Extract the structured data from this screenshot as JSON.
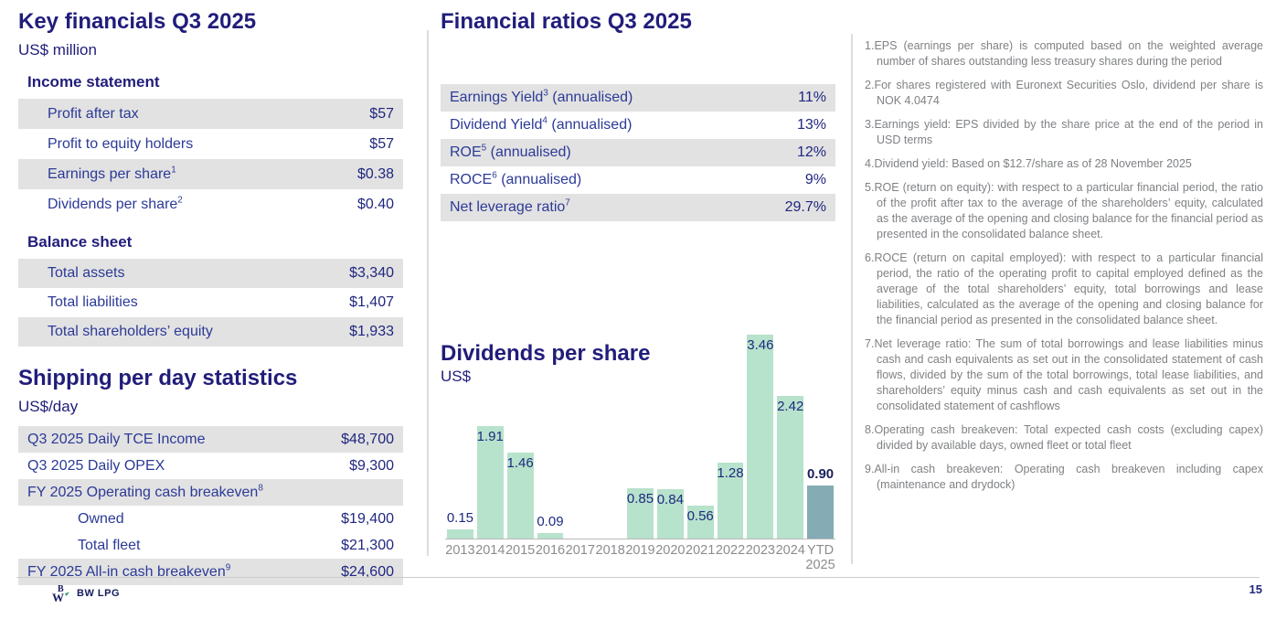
{
  "left": {
    "title": "Key financials Q3 2025",
    "subtitle": "US$ million",
    "income": {
      "heading": "Income statement",
      "rows": [
        {
          "label": "Profit after tax",
          "sup": "",
          "value": "$57",
          "shaded": true,
          "indent": 1
        },
        {
          "label": "Profit to equity holders",
          "sup": "",
          "value": "$57",
          "shaded": false,
          "indent": 1
        },
        {
          "label": "Earnings per share",
          "sup": "1",
          "value": "$0.38",
          "shaded": true,
          "indent": 1
        },
        {
          "label": "Dividends per share",
          "sup": "2",
          "value": "$0.40",
          "shaded": false,
          "indent": 1
        }
      ]
    },
    "balance": {
      "heading": "Balance sheet",
      "rows": [
        {
          "label": "Total assets",
          "sup": "",
          "value": "$3,340",
          "shaded": true,
          "indent": 1
        },
        {
          "label": "Total liabilities",
          "sup": "",
          "value": "$1,407",
          "shaded": false,
          "indent": 1
        },
        {
          "label": "Total shareholders’ equity",
          "sup": "",
          "value": "$1,933",
          "shaded": true,
          "indent": 1
        }
      ]
    }
  },
  "shipping": {
    "title": "Shipping per day statistics",
    "subtitle": "US$/day",
    "rows": [
      {
        "label": "Q3 2025 Daily TCE Income",
        "sup": "",
        "value": "$48,700",
        "shaded": true,
        "indent": 0
      },
      {
        "label": "Q3 2025 Daily OPEX",
        "sup": "",
        "value": "$9,300",
        "shaded": false,
        "indent": 0
      },
      {
        "label": "FY 2025 Operating cash breakeven",
        "sup": "8",
        "value": "",
        "shaded": true,
        "indent": 0
      },
      {
        "label": "Owned",
        "sup": "",
        "value": "$19,400",
        "shaded": false,
        "indent": 2
      },
      {
        "label": "Total fleet",
        "sup": "",
        "value": "$21,300",
        "shaded": false,
        "indent": 2
      },
      {
        "label": "FY 2025 All-in cash breakeven",
        "sup": "9",
        "value": "$24,600",
        "shaded": true,
        "indent": 0
      }
    ]
  },
  "ratios": {
    "title": "Financial ratios Q3 2025",
    "rows": [
      {
        "label": "Earnings Yield",
        "sup": "3",
        "suffix": " (annualised)",
        "value": "11%",
        "shaded": true,
        "indent": 0
      },
      {
        "label": "Dividend Yield",
        "sup": "4",
        "suffix": " (annualised)",
        "value": "13%",
        "shaded": false,
        "indent": 0
      },
      {
        "label": "ROE",
        "sup": "5",
        "suffix": " (annualised)",
        "value": "12%",
        "shaded": true,
        "indent": 0
      },
      {
        "label": "ROCE",
        "sup": "6",
        "suffix": " (annualised)",
        "value": "9%",
        "shaded": false,
        "indent": 0
      },
      {
        "label": "Net leverage ratio",
        "sup": "7",
        "suffix": "",
        "value": "29.7%",
        "shaded": true,
        "indent": 0
      }
    ]
  },
  "chart_data": {
    "type": "bar",
    "title": "Dividends per share",
    "unit": "US$",
    "categories": [
      "2013",
      "2014",
      "2015",
      "2016",
      "2017",
      "2018",
      "2019",
      "2020",
      "2021",
      "2022",
      "2023",
      "2024",
      "YTD\n2025"
    ],
    "values": [
      0.15,
      1.91,
      1.46,
      0.09,
      0,
      0,
      0.85,
      0.84,
      0.56,
      1.28,
      3.46,
      2.42,
      0.9
    ],
    "labels": [
      "0.15",
      "1.91",
      "1.46",
      "0.09",
      "",
      "",
      "0.85",
      "0.84",
      "0.56",
      "1.28",
      "3.46",
      "2.42",
      "0.90"
    ],
    "label_inside": [
      false,
      true,
      true,
      false,
      false,
      false,
      true,
      true,
      true,
      true,
      true,
      true,
      false
    ],
    "highlight_index": 12,
    "bar_color": "#b7e2cb",
    "highlight_color": "#85abb4",
    "ylim": [
      0,
      3.6
    ],
    "grid": false,
    "legend": "none"
  },
  "footnotes": [
    {
      "n": "1",
      "text": "EPS (earnings per share) is computed based on the weighted average number of shares outstanding less treasury shares during the period"
    },
    {
      "n": "2",
      "text": "For shares registered with Euronext Securities Oslo, dividend per share is NOK 4.0474"
    },
    {
      "n": "3",
      "text": "Earnings yield: EPS divided by the share price at the end of the period in USD terms"
    },
    {
      "n": "4",
      "text": "Dividend yield: Based on $12.7/share as of 28 November 2025"
    },
    {
      "n": "5",
      "text": "ROE (return on equity): with respect to a particular financial period, the ratio of the profit after tax to the average of the shareholders’ equity, calculated as the average of the opening and closing balance for the financial period as presented in the consolidated balance sheet."
    },
    {
      "n": "6",
      "text": "ROCE (return on capital employed): with respect to a particular financial period, the ratio of the operating profit to capital employed defined as the average of the total shareholders’ equity, total borrowings and lease liabilities, calculated as the average of the opening and closing balance for the financial period as presented in the consolidated balance sheet."
    },
    {
      "n": "7",
      "text": "Net leverage ratio: The sum of total borrowings and lease liabilities minus cash and cash equivalents as set out in the consolidated statement of cash flows, divided by the sum of the total borrowings, total lease liabilities, and shareholders’ equity minus cash and cash equivalents as set out in the consolidated statement of cashflows"
    },
    {
      "n": "8",
      "text": "Operating cash breakeven: Total expected cash costs (excluding capex) divided by available days, owned fleet or total fleet"
    },
    {
      "n": "9",
      "text": "All-in cash breakeven: Operating cash breakeven including capex (maintenance and drydock)"
    }
  ],
  "footer": {
    "brand": "BW LPG",
    "page_number": "15"
  },
  "colors": {
    "title_navy": "#211d7a",
    "row_label_blue": "#2c3a97",
    "row_value_navy": "#20277f",
    "row_shade_gray": "#e2e2e2",
    "footnote_gray": "#7f8184",
    "bar_green": "#b7e2cb",
    "bar_highlight_teal": "#85abb4",
    "axis_label_gray": "#8c8c90",
    "logo_green": "#2f9e6e"
  }
}
